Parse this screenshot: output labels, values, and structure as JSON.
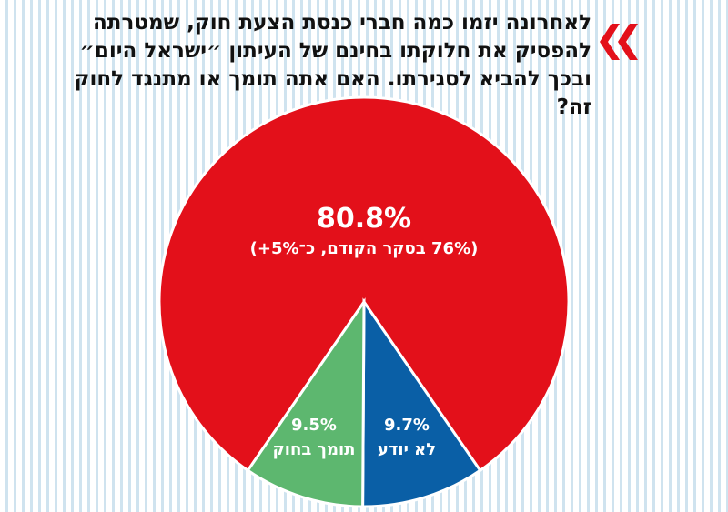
{
  "question": {
    "text": "לאחרונה יזמו כמה חברי כנסת הצעת חוק, שמטרתה להפסיק את חלוקתו בחינם של העיתון ״ישראל היום״ ובכך להביא לסגירתו. האם אתה תומך או מתנגד לחוק זה?"
  },
  "icon": {
    "name": "double-chevron-left-icon",
    "color": "#e3101a"
  },
  "chart_data": {
    "type": "pie",
    "title": "",
    "slices": [
      {
        "label": "",
        "value": 80.8,
        "value_label": "80.8%",
        "sublabel": "(76% בסקר הקודם, כ־5%+)",
        "color": "#e3101a"
      },
      {
        "label": "לא יודע",
        "value": 9.7,
        "value_label": "9.7%",
        "color": "#0a5fa6"
      },
      {
        "label": "תומך בחוק",
        "value": 9.5,
        "value_label": "9.5%",
        "color": "#5db76f"
      }
    ]
  }
}
